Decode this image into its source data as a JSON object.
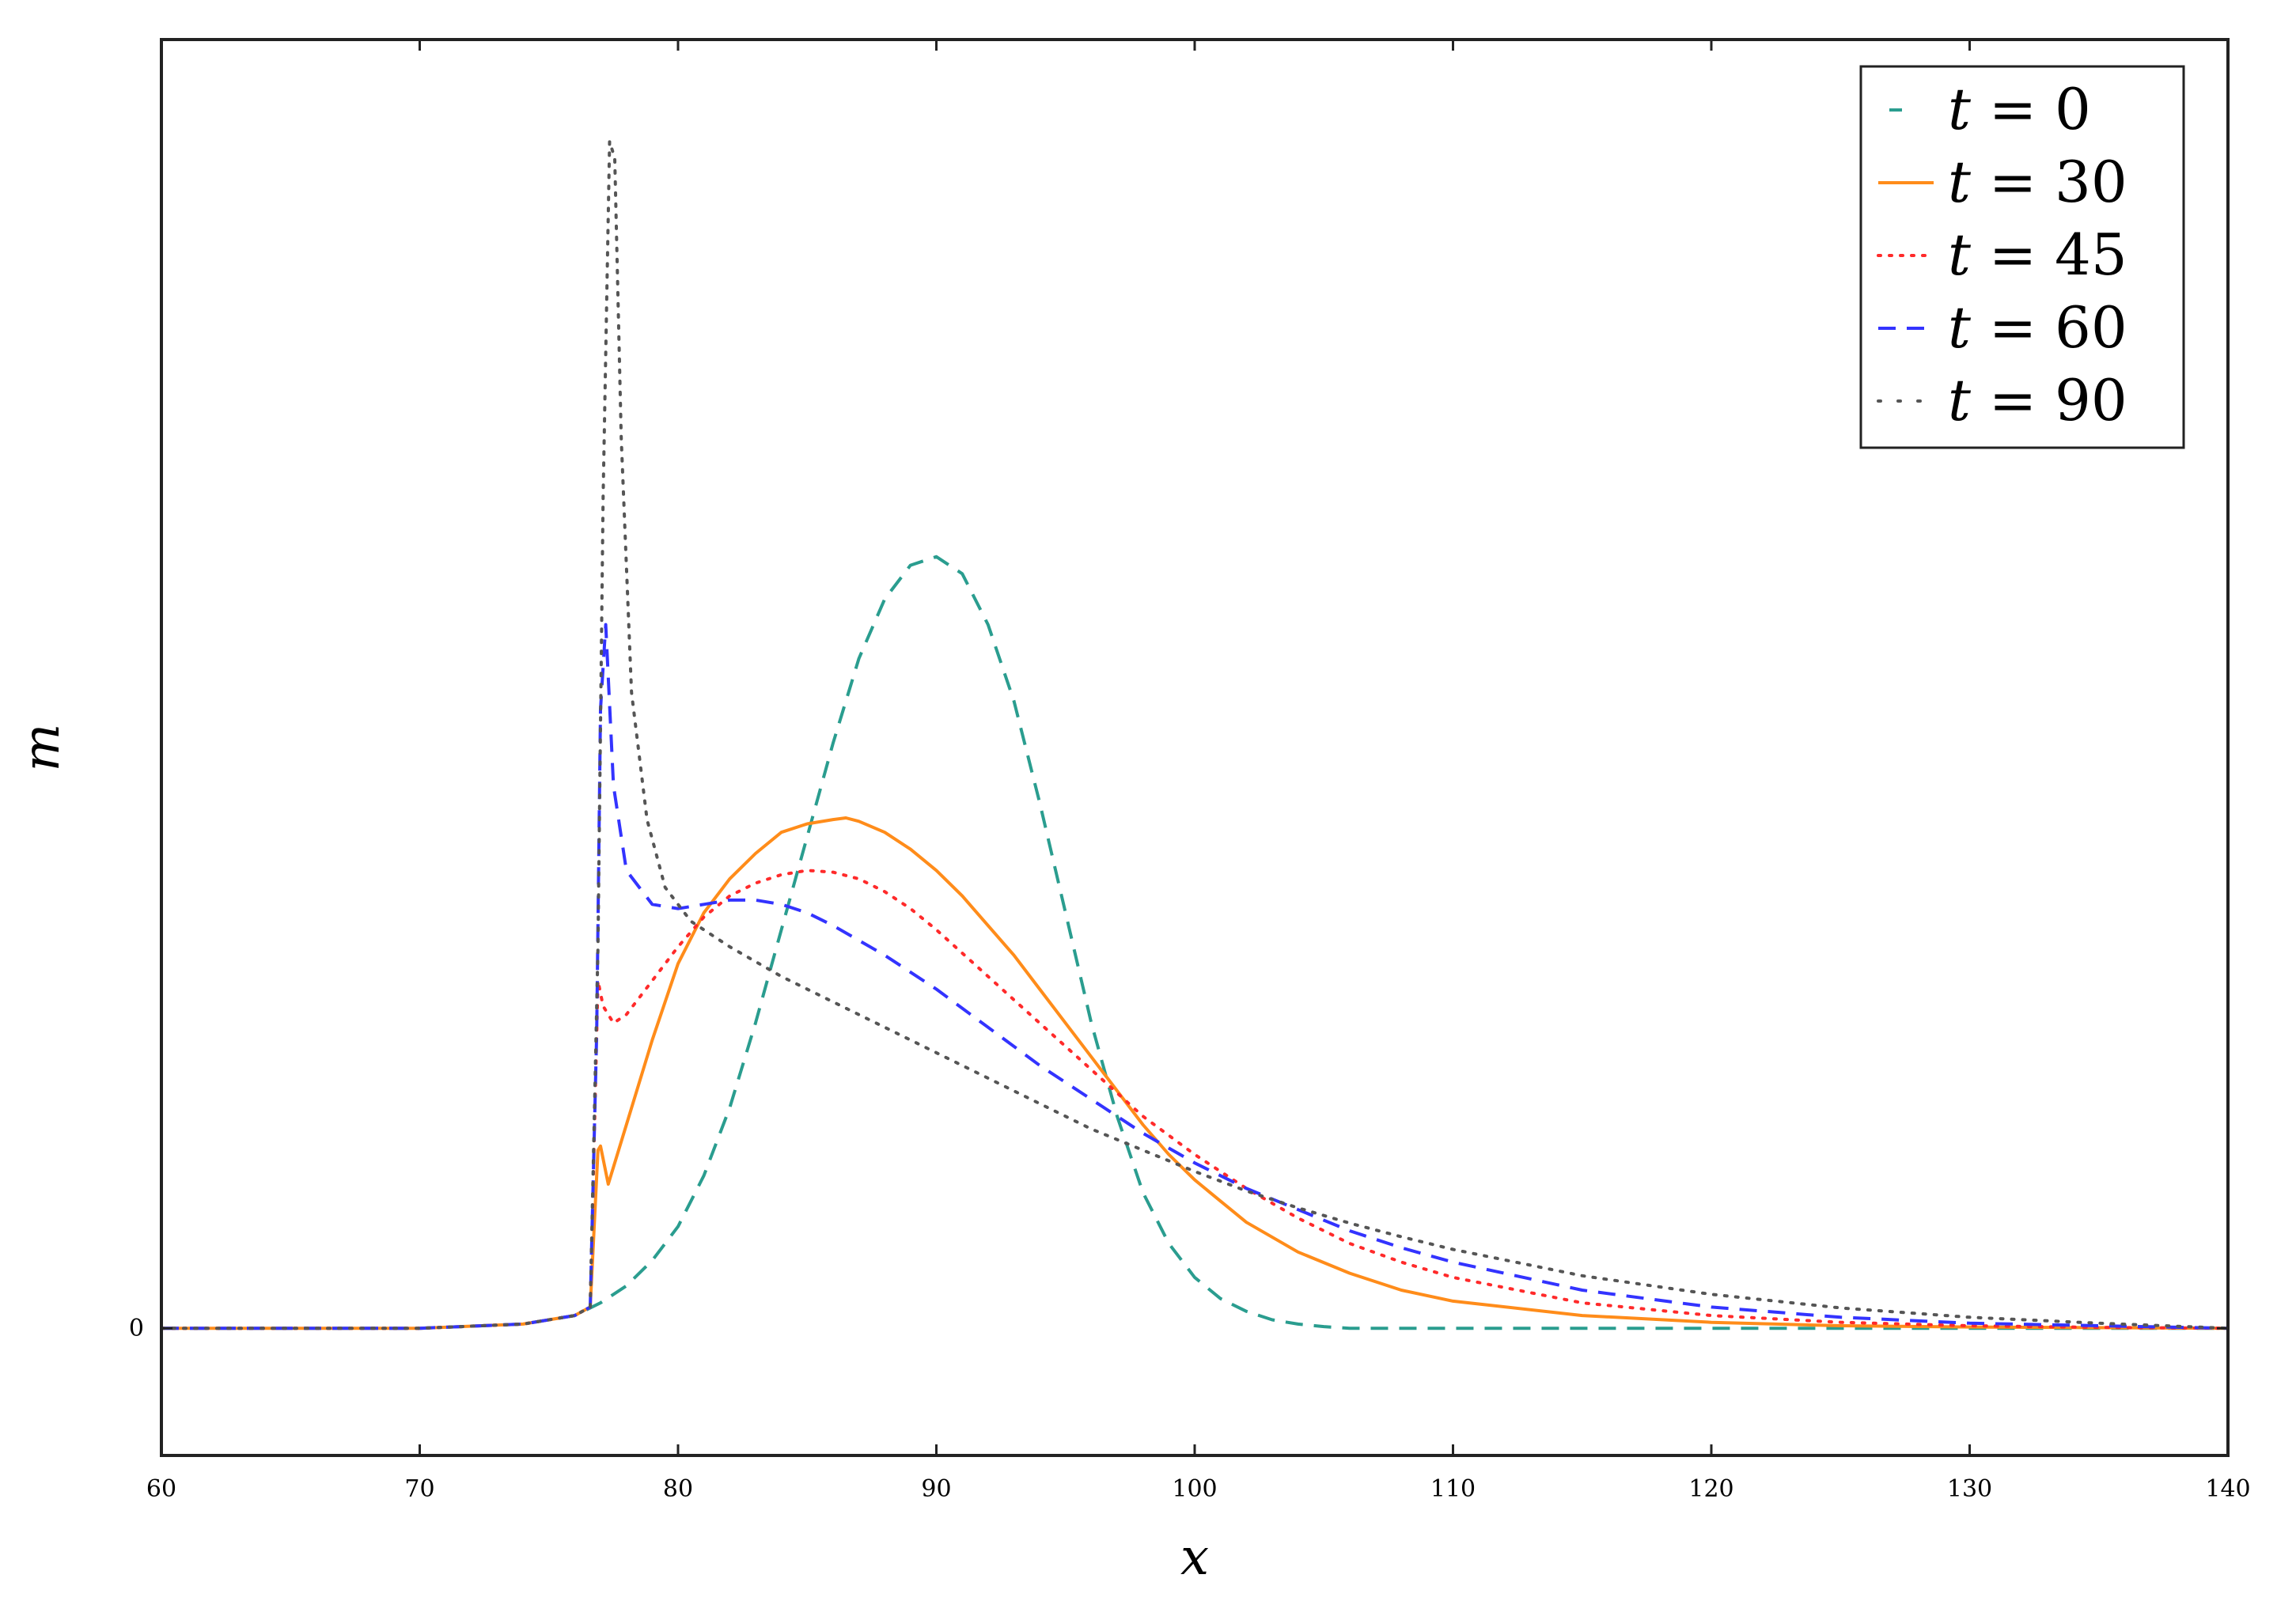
{
  "chart_data": {
    "type": "line",
    "title": "",
    "xlabel": "x",
    "ylabel": "m",
    "xlim": [
      60,
      140
    ],
    "ylim": [
      -0.15,
      1.52
    ],
    "xticks": [
      "60",
      "70",
      "80",
      "90",
      "100",
      "110",
      "120",
      "130",
      "140"
    ],
    "yticks": [
      "0"
    ],
    "grid": false,
    "legend_position": "top-right",
    "series": [
      {
        "name": "t = 0",
        "label_var": "t",
        "label_value": "0",
        "color": "#2a9d8f",
        "style": "dashed",
        "x": [
          60,
          70,
          74,
          76,
          77,
          78,
          79,
          80,
          81,
          82,
          83,
          84,
          85,
          86,
          87,
          88,
          89,
          90,
          91,
          92,
          93,
          94,
          95,
          96,
          97,
          98,
          99,
          100,
          101,
          102,
          103,
          104,
          105,
          106,
          108,
          110,
          120,
          130,
          140
        ],
        "y": [
          0,
          0,
          0.005,
          0.015,
          0.03,
          0.05,
          0.08,
          0.12,
          0.18,
          0.26,
          0.36,
          0.47,
          0.58,
          0.69,
          0.79,
          0.86,
          0.9,
          0.91,
          0.89,
          0.83,
          0.74,
          0.62,
          0.49,
          0.36,
          0.25,
          0.16,
          0.1,
          0.06,
          0.035,
          0.02,
          0.01,
          0.005,
          0.002,
          0,
          0,
          0,
          0,
          0,
          0
        ]
      },
      {
        "name": "t = 30",
        "label_var": "t",
        "label_value": "30",
        "color": "#ff8c1a",
        "style": "solid",
        "x": [
          60,
          70,
          74,
          76,
          76.6,
          76.9,
          77.0,
          77.3,
          78,
          79,
          80,
          81,
          82,
          83,
          84,
          85,
          86,
          86.5,
          87,
          88,
          89,
          90,
          91,
          92,
          93,
          94,
          95,
          96,
          97,
          98,
          99,
          100,
          101,
          102,
          104,
          106,
          108,
          110,
          115,
          120,
          125,
          130,
          140
        ],
        "y": [
          0,
          0,
          0.005,
          0.015,
          0.025,
          0.21,
          0.215,
          0.17,
          0.24,
          0.34,
          0.43,
          0.49,
          0.53,
          0.56,
          0.585,
          0.595,
          0.6,
          0.602,
          0.598,
          0.585,
          0.565,
          0.54,
          0.51,
          0.475,
          0.44,
          0.4,
          0.36,
          0.32,
          0.28,
          0.24,
          0.205,
          0.175,
          0.15,
          0.125,
          0.09,
          0.065,
          0.045,
          0.032,
          0.015,
          0.007,
          0.003,
          0.0015,
          0
        ]
      },
      {
        "name": "t = 45",
        "label_var": "t",
        "label_value": "45",
        "color": "#ff2a2a",
        "style": "dotted",
        "x": [
          60,
          70,
          74,
          76,
          76.6,
          76.9,
          77.1,
          77.5,
          78,
          79,
          80,
          81,
          82,
          83,
          84,
          85,
          86,
          87,
          88,
          89,
          90,
          92,
          94,
          96,
          98,
          100,
          102,
          104,
          106,
          108,
          110,
          115,
          120,
          125,
          130,
          135,
          140
        ],
        "y": [
          0,
          0,
          0.005,
          0.015,
          0.025,
          0.41,
          0.38,
          0.36,
          0.37,
          0.41,
          0.45,
          0.485,
          0.51,
          0.525,
          0.535,
          0.54,
          0.538,
          0.53,
          0.515,
          0.495,
          0.47,
          0.415,
          0.36,
          0.305,
          0.25,
          0.205,
          0.165,
          0.13,
          0.1,
          0.078,
          0.06,
          0.03,
          0.015,
          0.007,
          0.003,
          0.001,
          0
        ]
      },
      {
        "name": "t = 60",
        "label_var": "t",
        "label_value": "60",
        "color": "#3333ff",
        "style": "dashed",
        "x": [
          60,
          70,
          74,
          76,
          76.6,
          76.85,
          77.0,
          77.2,
          77.5,
          78,
          79,
          80,
          81,
          82,
          83,
          84,
          85,
          86,
          88,
          90,
          92,
          94,
          96,
          98,
          100,
          102,
          104,
          106,
          108,
          110,
          115,
          120,
          125,
          130,
          135,
          140
        ],
        "y": [
          0,
          0,
          0.005,
          0.015,
          0.025,
          0.35,
          0.73,
          0.83,
          0.64,
          0.54,
          0.5,
          0.495,
          0.5,
          0.505,
          0.505,
          0.5,
          0.49,
          0.475,
          0.44,
          0.4,
          0.355,
          0.31,
          0.27,
          0.23,
          0.195,
          0.165,
          0.14,
          0.115,
          0.095,
          0.078,
          0.045,
          0.025,
          0.013,
          0.006,
          0.003,
          0
        ]
      },
      {
        "name": "t = 90",
        "label_var": "t",
        "label_value": "90",
        "color": "#555555",
        "style": "dotted",
        "x": [
          60,
          70,
          74,
          76,
          76.6,
          76.9,
          77.1,
          77.35,
          77.55,
          77.8,
          78.2,
          78.8,
          79.5,
          80.5,
          82,
          84,
          86,
          88,
          90,
          92,
          94,
          96,
          98,
          100,
          102,
          104,
          106,
          108,
          110,
          115,
          120,
          125,
          130,
          135,
          140
        ],
        "y": [
          0,
          0,
          0.005,
          0.015,
          0.025,
          0.45,
          0.98,
          1.4,
          1.38,
          1.05,
          0.75,
          0.6,
          0.52,
          0.48,
          0.45,
          0.415,
          0.385,
          0.355,
          0.325,
          0.295,
          0.265,
          0.235,
          0.21,
          0.185,
          0.162,
          0.142,
          0.124,
          0.108,
          0.093,
          0.062,
          0.04,
          0.024,
          0.013,
          0.006,
          0
        ]
      }
    ]
  }
}
